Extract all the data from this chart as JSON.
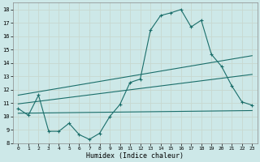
{
  "xlabel": "Humidex (Indice chaleur)",
  "bg_color": "#cde8e8",
  "grid_color": "#b8d8d8",
  "line_color": "#1a6e6a",
  "xlim": [
    -0.5,
    23.5
  ],
  "ylim": [
    8,
    18.5
  ],
  "xticks": [
    0,
    1,
    2,
    3,
    4,
    5,
    6,
    7,
    8,
    9,
    10,
    11,
    12,
    13,
    14,
    15,
    16,
    17,
    18,
    19,
    20,
    21,
    22,
    23
  ],
  "yticks": [
    8,
    9,
    10,
    11,
    12,
    13,
    14,
    15,
    16,
    17,
    18
  ],
  "main_line_x": [
    0,
    1,
    2,
    3,
    4,
    5,
    6,
    7,
    8,
    9,
    10,
    11,
    12,
    13,
    14,
    15,
    16,
    17,
    18,
    19,
    20,
    21,
    22,
    23
  ],
  "main_line_y": [
    10.6,
    10.1,
    11.6,
    8.9,
    8.9,
    9.5,
    8.65,
    8.3,
    8.75,
    10.0,
    10.9,
    12.55,
    12.8,
    16.45,
    17.55,
    17.75,
    18.0,
    16.7,
    17.2,
    14.65,
    13.75,
    12.3,
    11.1,
    10.85
  ],
  "upper_line_x": [
    0,
    23
  ],
  "upper_line_y": [
    11.6,
    14.55
  ],
  "lower_line_x": [
    0,
    23
  ],
  "lower_line_y": [
    10.25,
    10.45
  ],
  "mid_line_x": [
    0,
    23
  ],
  "mid_line_y": [
    10.95,
    13.15
  ]
}
